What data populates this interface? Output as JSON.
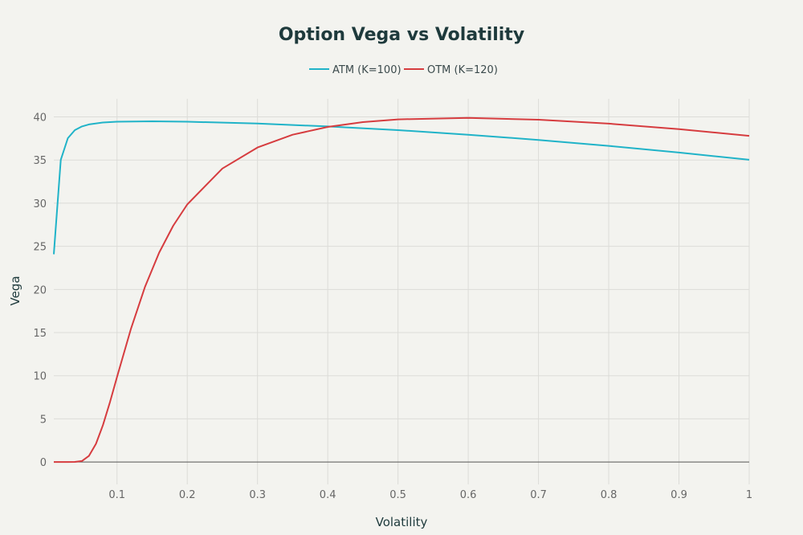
{
  "chart_data": {
    "type": "line",
    "title": "Option Vega vs Volatility",
    "xlabel": "Volatility",
    "ylabel": "Vega",
    "xlim": [
      0.01,
      1
    ],
    "ylim": [
      -2.6,
      42.1
    ],
    "grid": true,
    "legend_position": "top-center",
    "xticks": [
      0.1,
      0.2,
      0.3,
      0.4,
      0.5,
      0.6,
      0.7,
      0.8,
      0.9,
      1
    ],
    "xtick_labels": [
      "0.1",
      "0.2",
      "0.3",
      "0.4",
      "0.5",
      "0.6",
      "0.7",
      "0.8",
      "0.9",
      "1"
    ],
    "yticks": [
      0,
      5,
      10,
      15,
      20,
      25,
      30,
      35,
      40
    ],
    "ytick_labels": [
      "0",
      "5",
      "10",
      "15",
      "20",
      "25",
      "30",
      "35",
      "40"
    ],
    "series": [
      {
        "name": "ATM (K=100)",
        "color": "#20b3c8",
        "x": [
          0.01,
          0.02,
          0.03,
          0.04,
          0.05,
          0.06,
          0.08,
          0.1,
          0.15,
          0.2,
          0.3,
          0.4,
          0.5,
          0.6,
          0.7,
          0.8,
          0.9,
          1.0
        ],
        "y": [
          24.08,
          35.03,
          37.54,
          38.47,
          38.9,
          39.13,
          39.35,
          39.45,
          39.49,
          39.45,
          39.23,
          38.9,
          38.47,
          37.94,
          37.33,
          36.64,
          35.87,
          35.03
        ]
      },
      {
        "name": "OTM (K=120)",
        "color": "#d63c3f",
        "x": [
          0.01,
          0.02,
          0.03,
          0.04,
          0.05,
          0.06,
          0.07,
          0.08,
          0.09,
          0.1,
          0.12,
          0.14,
          0.16,
          0.18,
          0.2,
          0.25,
          0.3,
          0.35,
          0.4,
          0.45,
          0.5,
          0.6,
          0.7,
          0.8,
          0.9,
          1.0
        ],
        "y": [
          0,
          0,
          0,
          0.004,
          0.11,
          0.7,
          2.1,
          4.27,
          6.95,
          9.84,
          15.48,
          20.34,
          24.27,
          27.39,
          29.85,
          34.02,
          36.46,
          37.94,
          38.84,
          39.4,
          39.72,
          39.89,
          39.68,
          39.22,
          38.58,
          37.81
        ]
      }
    ]
  }
}
